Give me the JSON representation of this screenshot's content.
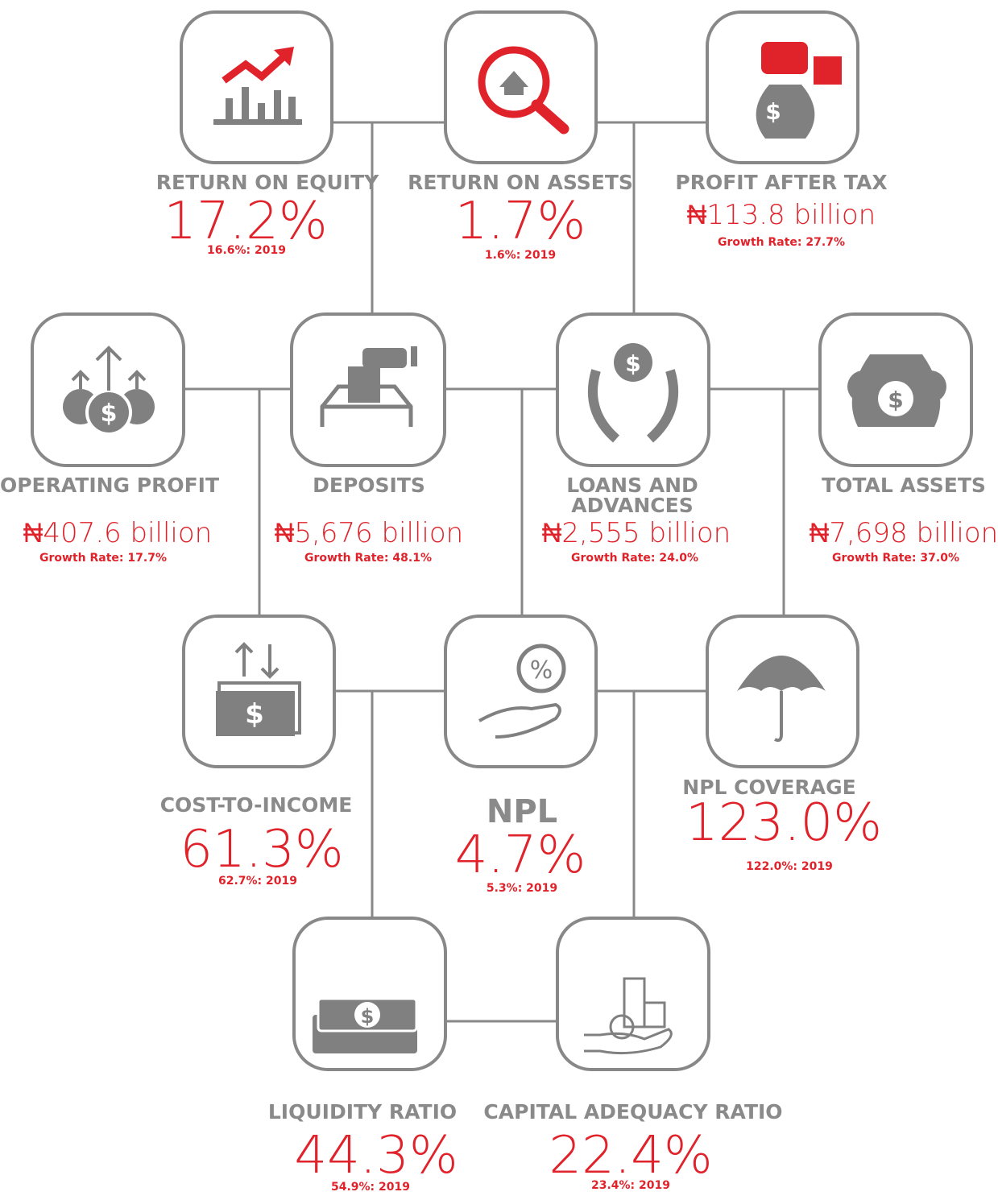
{
  "items": [
    {
      "title": "RETURN ON EQUITY",
      "value": "17.2%",
      "note": "16.6%: 2019"
    },
    {
      "title": "RETURN ON ASSETS",
      "value": "1.7%",
      "note": "1.6%: 2019"
    },
    {
      "title": "PROFIT AFTER TAX",
      "value": "₦113.8 billion",
      "note": "Growth Rate: 27.7%"
    },
    {
      "title": "OPERATING PROFIT",
      "value": "₦407.6 billion",
      "note": "Growth Rate: 17.7%"
    },
    {
      "title": "DEPOSITS",
      "value": "₦5,676 billion",
      "note": "Growth Rate:  48.1%"
    },
    {
      "title": "LOANS AND ADVANCES",
      "value": "₦2,555 billion",
      "note": "Growth Rate: 24.0%"
    },
    {
      "title": "TOTAL ASSETS",
      "value": "₦7,698 billion",
      "note": "Growth Rate: 37.0%"
    },
    {
      "title": "COST-TO-INCOME",
      "value": "61.3%",
      "note": "62.7%: 2019"
    },
    {
      "title": "NPL",
      "value": "4.7%",
      "note": "5.3%: 2019"
    },
    {
      "title": "NPL COVERAGE",
      "value": "123.0%",
      "note": "122.0%: 2019"
    },
    {
      "title": "LIQUIDITY RATIO",
      "value": "44.3%",
      "note": "54.9%: 2019"
    },
    {
      "title": "CAPITAL ADEQUACY RATIO",
      "value": "22.4%",
      "note": "23.4%: 2019"
    }
  ]
}
